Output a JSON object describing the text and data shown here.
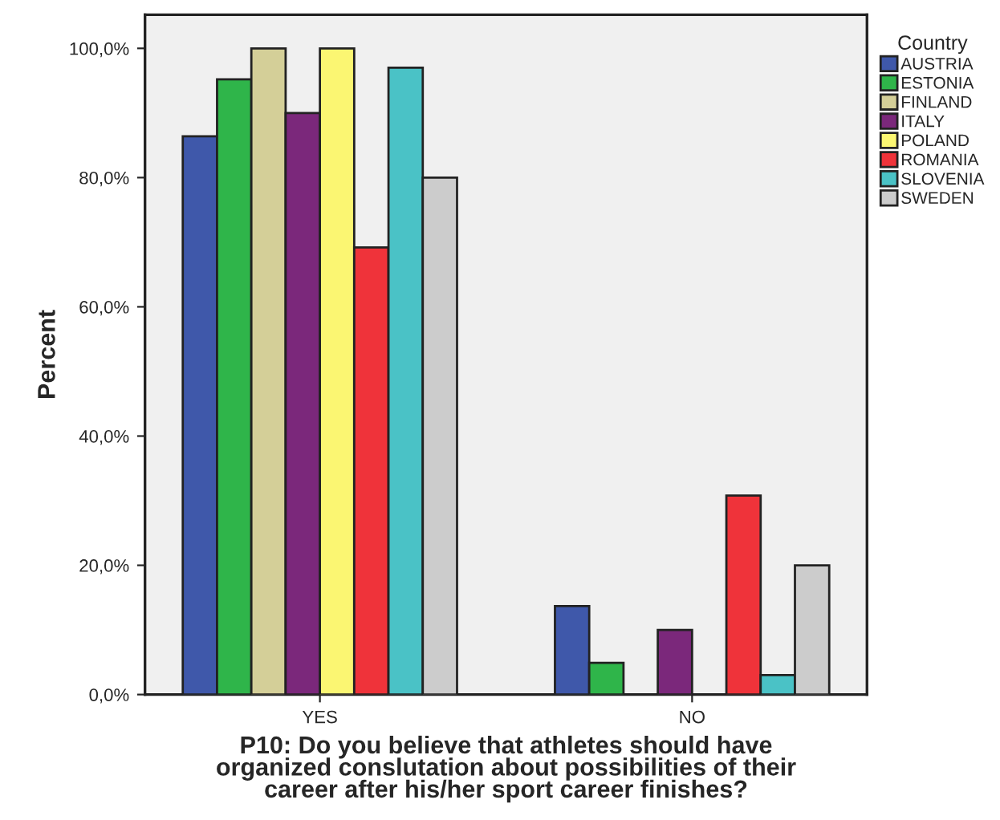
{
  "chart_data": {
    "type": "bar",
    "xlabel": "P10: Do you believe that athletes should have\norganized conslutation about possibilities of their\ncareer after his/her sport career finishes?",
    "ylabel": "Percent",
    "legend_title": "Country",
    "legend": "right",
    "grid": false,
    "categories": [
      "YES",
      "NO"
    ],
    "ylim": [
      0,
      105.2
    ],
    "yticks": [
      {
        "value": 0,
        "label": "0,0%"
      },
      {
        "value": 20,
        "label": "20,0%"
      },
      {
        "value": 40,
        "label": "40,0%"
      },
      {
        "value": 60,
        "label": "60,0%"
      },
      {
        "value": 80,
        "label": "80,0%"
      },
      {
        "value": 100,
        "label": "100,0%"
      }
    ],
    "series": [
      {
        "name": "AUSTRIA",
        "color": "#3f58aa",
        "values": [
          86.4,
          13.7
        ]
      },
      {
        "name": "ESTONIA",
        "color": "#2fb54a",
        "values": [
          95.2,
          4.9
        ]
      },
      {
        "name": "FINLAND",
        "color": "#d4cf98",
        "values": [
          100,
          0
        ]
      },
      {
        "name": "ITALY",
        "color": "#7b287b",
        "values": [
          90,
          10
        ]
      },
      {
        "name": "POLAND",
        "color": "#fbf672",
        "values": [
          100,
          0
        ]
      },
      {
        "name": "ROMANIA",
        "color": "#ef333a",
        "values": [
          69.2,
          30.8
        ]
      },
      {
        "name": "SLOVENIA",
        "color": "#4ac2c6",
        "values": [
          97,
          3
        ]
      },
      {
        "name": "SWEDEN",
        "color": "#cccccc",
        "values": [
          80,
          20
        ]
      }
    ]
  }
}
